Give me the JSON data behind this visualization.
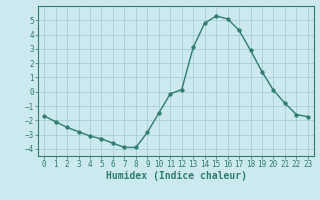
{
  "x": [
    0,
    1,
    2,
    3,
    4,
    5,
    6,
    7,
    8,
    9,
    10,
    11,
    12,
    13,
    14,
    15,
    16,
    17,
    18,
    19,
    20,
    21,
    22,
    23
  ],
  "y": [
    -1.7,
    -2.1,
    -2.5,
    -2.8,
    -3.1,
    -3.3,
    -3.6,
    -3.9,
    -3.9,
    -2.85,
    -1.5,
    -0.15,
    0.15,
    3.1,
    4.8,
    5.3,
    5.1,
    4.3,
    2.9,
    1.4,
    0.1,
    -0.8,
    -1.6,
    -1.75
  ],
  "line_color": "#2e7d6e",
  "marker": "o",
  "marker_size": 2.5,
  "bg_color": "#cce9f0",
  "grid_color": "#aacdd6",
  "xlabel": "Humidex (Indice chaleur)",
  "ylim": [
    -4.5,
    6.0
  ],
  "xlim": [
    -0.5,
    23.5
  ],
  "yticks": [
    -4,
    -3,
    -2,
    -1,
    0,
    1,
    2,
    3,
    4,
    5
  ],
  "xticks": [
    0,
    1,
    2,
    3,
    4,
    5,
    6,
    7,
    8,
    9,
    10,
    11,
    12,
    13,
    14,
    15,
    16,
    17,
    18,
    19,
    20,
    21,
    22,
    23
  ],
  "tick_fontsize": 5.5,
  "label_fontsize": 7
}
